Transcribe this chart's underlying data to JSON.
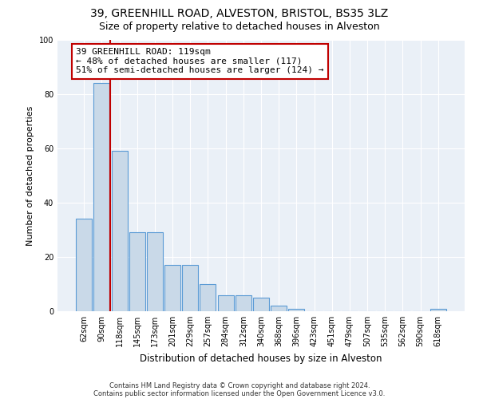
{
  "title1": "39, GREENHILL ROAD, ALVESTON, BRISTOL, BS35 3LZ",
  "title2": "Size of property relative to detached houses in Alveston",
  "xlabel": "Distribution of detached houses by size in Alveston",
  "ylabel": "Number of detached properties",
  "footer1": "Contains HM Land Registry data © Crown copyright and database right 2024.",
  "footer2": "Contains public sector information licensed under the Open Government Licence v3.0.",
  "categories": [
    "62sqm",
    "90sqm",
    "118sqm",
    "145sqm",
    "173sqm",
    "201sqm",
    "229sqm",
    "257sqm",
    "284sqm",
    "312sqm",
    "340sqm",
    "368sqm",
    "396sqm",
    "423sqm",
    "451sqm",
    "479sqm",
    "507sqm",
    "535sqm",
    "562sqm",
    "590sqm",
    "618sqm"
  ],
  "values": [
    34,
    84,
    59,
    29,
    29,
    17,
    17,
    10,
    6,
    6,
    5,
    2,
    1,
    0,
    0,
    0,
    0,
    0,
    0,
    0,
    1
  ],
  "bar_color": "#c9d9e8",
  "bar_edge_color": "#5b9bd5",
  "vline_x": 1.5,
  "vline_color": "#c00000",
  "annotation_text": "39 GREENHILL ROAD: 119sqm\n← 48% of detached houses are smaller (117)\n51% of semi-detached houses are larger (124) →",
  "annotation_box_color": "white",
  "annotation_box_edge_color": "#c00000",
  "ylim": [
    0,
    100
  ],
  "yticks": [
    0,
    20,
    40,
    60,
    80,
    100
  ],
  "plot_bg_color": "#eaf0f7",
  "title1_fontsize": 10,
  "title2_fontsize": 9,
  "xlabel_fontsize": 8.5,
  "ylabel_fontsize": 8,
  "tick_fontsize": 7,
  "annotation_fontsize": 8,
  "footer_fontsize": 6
}
